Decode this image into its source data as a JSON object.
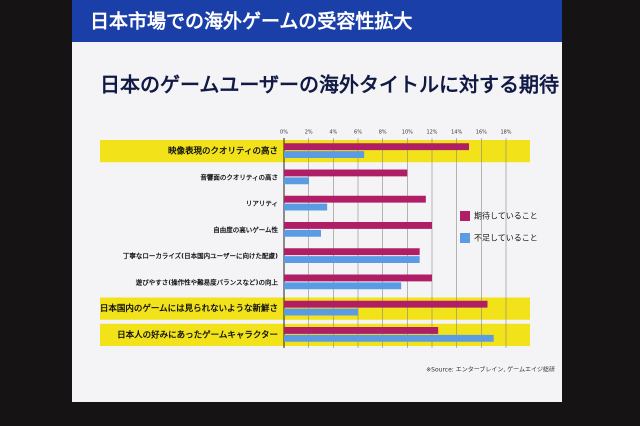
{
  "chart_data": {
    "type": "barh",
    "title": "日本市場での海外ゲームの受容性拡大",
    "subtitle": "日本のゲームユーザーの海外タイトルに対する期待",
    "source": "※Source: エンターブレイン, ゲームエイジ総研",
    "categories": [
      "映像表現のクオリティの高さ",
      "音響面のクオリティの高さ",
      "リアリティ",
      "自由度の高いゲーム性",
      "丁寧なローカライズ(日本国内ユーザーに向けた配慮)",
      "遊びやすさ(操作性や難易度バランスなど)の向上",
      "日本国内のゲームには見られないような新鮮さ",
      "日本人の好みにあったゲームキャラクター"
    ],
    "highlight": [
      true,
      false,
      false,
      false,
      false,
      false,
      true,
      true
    ],
    "highlight_color": "#f2e21a",
    "series": [
      {
        "name": "期待していること",
        "color": "#b01e66",
        "values": [
          15,
          10,
          11.5,
          12,
          11,
          12,
          16.5,
          12.5
        ]
      },
      {
        "name": "不足していること",
        "color": "#5b9be3",
        "values": [
          6.5,
          2,
          3.5,
          3,
          11,
          9.5,
          6,
          17
        ]
      }
    ],
    "xlim": [
      0,
      18
    ],
    "xticks": [
      {
        "value": 0,
        "label": "0%"
      },
      {
        "value": 2,
        "label": "2%"
      },
      {
        "value": 4,
        "label": "4%"
      },
      {
        "value": 6,
        "label": "6%"
      },
      {
        "value": 8,
        "label": "8%"
      },
      {
        "value": 10,
        "label": "10%"
      },
      {
        "value": 12,
        "label": "12%"
      },
      {
        "value": 14,
        "label": "14%"
      },
      {
        "value": 16,
        "label": "16%"
      },
      {
        "value": 18,
        "label": "18%"
      }
    ],
    "grid": true,
    "legend": "right"
  }
}
